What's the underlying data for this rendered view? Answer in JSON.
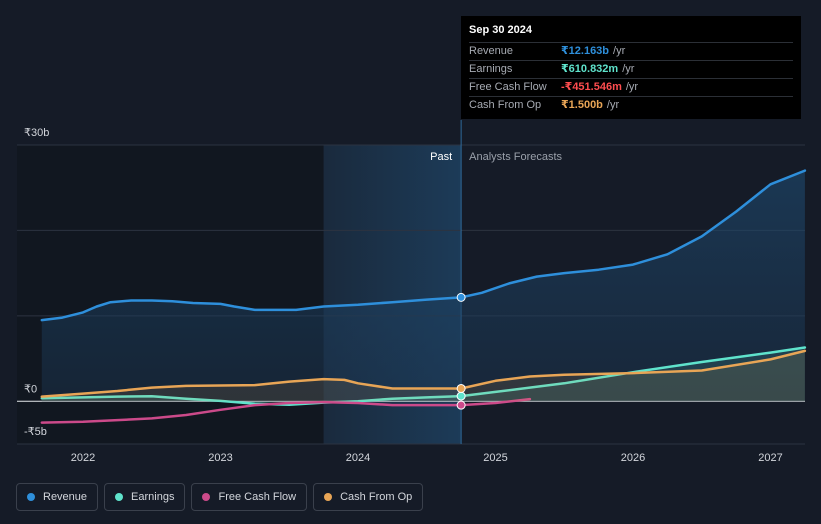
{
  "tooltip": {
    "date": "Sep 30 2024",
    "rows": [
      {
        "label": "Revenue",
        "value": "₹12.163b",
        "unit": "/yr",
        "color": "#2e8fdb"
      },
      {
        "label": "Earnings",
        "value": "₹610.832m",
        "unit": "/yr",
        "color": "#5fe3cc"
      },
      {
        "label": "Free Cash Flow",
        "value": "-₹451.546m",
        "unit": "/yr",
        "color": "#ff4d4f"
      },
      {
        "label": "Cash From Op",
        "value": "₹1.500b",
        "unit": "/yr",
        "color": "#e8a556"
      }
    ]
  },
  "legend": [
    {
      "label": "Revenue",
      "color": "#2e8fdb"
    },
    {
      "label": "Earnings",
      "color": "#5fe3cc"
    },
    {
      "label": "Free Cash Flow",
      "color": "#cc4a8a"
    },
    {
      "label": "Cash From Op",
      "color": "#e8a556"
    }
  ],
  "chart_data": {
    "type": "line",
    "title": "",
    "xlabel": "",
    "ylabel": "",
    "ylim": [
      -5,
      30
    ],
    "xlim": [
      2021.7,
      2027.25
    ],
    "y_tick_labels": [
      {
        "value": 30,
        "label": "₹30b"
      },
      {
        "value": 0,
        "label": "₹0"
      },
      {
        "value": -5,
        "label": "-₹5b"
      }
    ],
    "gridlines": [
      30,
      20,
      10,
      0,
      -5
    ],
    "x_ticks": [
      {
        "value": 2022,
        "label": "2022"
      },
      {
        "value": 2023,
        "label": "2023"
      },
      {
        "value": 2024,
        "label": "2024"
      },
      {
        "value": 2025,
        "label": "2025"
      },
      {
        "value": 2026,
        "label": "2026"
      },
      {
        "value": 2027,
        "label": "2027"
      }
    ],
    "past_label": "Past",
    "forecast_label": "Analysts Forecasts",
    "divider_x": 2024.75,
    "highlight_start": 2023.75,
    "series": [
      {
        "name": "Revenue",
        "color": "#2e8fdb",
        "fill": true,
        "points": [
          [
            2021.7,
            9.5
          ],
          [
            2021.85,
            9.8
          ],
          [
            2022.0,
            10.4
          ],
          [
            2022.1,
            11.1
          ],
          [
            2022.2,
            11.6
          ],
          [
            2022.35,
            11.8
          ],
          [
            2022.5,
            11.8
          ],
          [
            2022.65,
            11.7
          ],
          [
            2022.8,
            11.5
          ],
          [
            2023.0,
            11.4
          ],
          [
            2023.1,
            11.1
          ],
          [
            2023.25,
            10.7
          ],
          [
            2023.4,
            10.7
          ],
          [
            2023.55,
            10.7
          ],
          [
            2023.75,
            11.1
          ],
          [
            2024.0,
            11.3
          ],
          [
            2024.25,
            11.6
          ],
          [
            2024.5,
            11.9
          ],
          [
            2024.75,
            12.163
          ]
        ],
        "forecast": [
          [
            2024.75,
            12.163
          ],
          [
            2024.9,
            12.7
          ],
          [
            2025.1,
            13.8
          ],
          [
            2025.3,
            14.6
          ],
          [
            2025.5,
            15.0
          ],
          [
            2025.75,
            15.4
          ],
          [
            2026.0,
            16.0
          ],
          [
            2026.25,
            17.2
          ],
          [
            2026.5,
            19.3
          ],
          [
            2026.75,
            22.2
          ],
          [
            2027.0,
            25.4
          ],
          [
            2027.25,
            27.0
          ]
        ]
      },
      {
        "name": "Earnings",
        "color": "#5fe3cc",
        "fill": true,
        "points": [
          [
            2021.7,
            0.35
          ],
          [
            2022.0,
            0.45
          ],
          [
            2022.25,
            0.55
          ],
          [
            2022.5,
            0.6
          ],
          [
            2022.75,
            0.3
          ],
          [
            2023.0,
            0.05
          ],
          [
            2023.25,
            -0.3
          ],
          [
            2023.5,
            -0.4
          ],
          [
            2023.75,
            -0.15
          ],
          [
            2024.0,
            0.0
          ],
          [
            2024.25,
            0.3
          ],
          [
            2024.5,
            0.45
          ],
          [
            2024.75,
            0.610832
          ]
        ],
        "forecast": [
          [
            2024.75,
            0.610832
          ],
          [
            2025.0,
            1.1
          ],
          [
            2025.5,
            2.1
          ],
          [
            2026.0,
            3.4
          ],
          [
            2026.5,
            4.6
          ],
          [
            2027.0,
            5.7
          ],
          [
            2027.25,
            6.3
          ]
        ]
      },
      {
        "name": "Free Cash Flow",
        "color": "#cc4a8a",
        "fill": false,
        "points": [
          [
            2021.7,
            -2.5
          ],
          [
            2022.0,
            -2.4
          ],
          [
            2022.25,
            -2.2
          ],
          [
            2022.5,
            -2.0
          ],
          [
            2022.75,
            -1.6
          ],
          [
            2023.0,
            -1.0
          ],
          [
            2023.25,
            -0.45
          ],
          [
            2023.5,
            -0.2
          ],
          [
            2023.75,
            -0.1
          ],
          [
            2024.0,
            -0.2
          ],
          [
            2024.25,
            -0.45
          ],
          [
            2024.5,
            -0.45
          ],
          [
            2024.75,
            -0.451546
          ]
        ],
        "forecast": [
          [
            2024.75,
            -0.451546
          ],
          [
            2025.0,
            -0.2
          ],
          [
            2025.25,
            0.25
          ]
        ]
      },
      {
        "name": "Cash From Op",
        "color": "#e8a556",
        "fill": true,
        "points": [
          [
            2021.7,
            0.55
          ],
          [
            2022.0,
            0.9
          ],
          [
            2022.25,
            1.2
          ],
          [
            2022.5,
            1.6
          ],
          [
            2022.75,
            1.8
          ],
          [
            2023.0,
            1.85
          ],
          [
            2023.25,
            1.9
          ],
          [
            2023.5,
            2.3
          ],
          [
            2023.75,
            2.6
          ],
          [
            2023.9,
            2.5
          ],
          [
            2024.0,
            2.1
          ],
          [
            2024.25,
            1.5
          ],
          [
            2024.5,
            1.5
          ],
          [
            2024.75,
            1.5
          ]
        ],
        "forecast": [
          [
            2024.75,
            1.5
          ],
          [
            2025.0,
            2.4
          ],
          [
            2025.25,
            2.9
          ],
          [
            2025.5,
            3.1
          ],
          [
            2026.0,
            3.3
          ],
          [
            2026.5,
            3.6
          ],
          [
            2027.0,
            4.9
          ],
          [
            2027.25,
            5.9
          ]
        ]
      }
    ],
    "tooltip_marker_x": 2024.75
  }
}
